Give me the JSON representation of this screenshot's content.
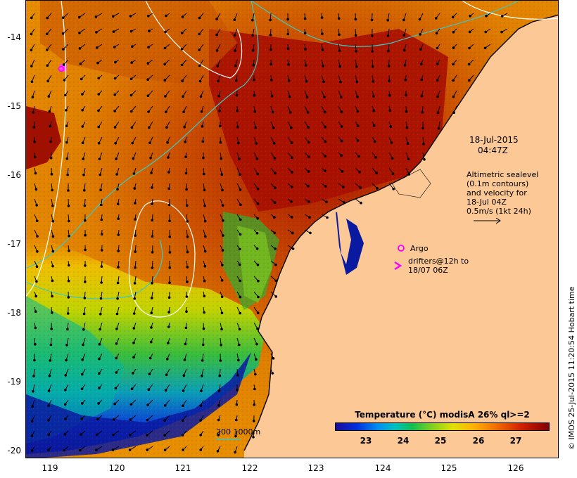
{
  "map": {
    "y_ticks": [
      "-14",
      "-15",
      "-16",
      "-17",
      "-18",
      "-19",
      "-20"
    ],
    "x_ticks": [
      "119",
      "120",
      "121",
      "122",
      "123",
      "124",
      "125",
      "126"
    ]
  },
  "annotations": {
    "date": "18-Jul-2015",
    "time": "04:47Z",
    "altimetry_lines": [
      "Altimetric sealevel",
      "(0.1m contours)",
      "and velocity for",
      "18-Jul 04Z",
      "0.5m/s (1kt 24h)"
    ],
    "argo_label": "Argo",
    "drifters_lines": [
      "drifters@12h to",
      "18/07 06Z"
    ],
    "depth_legend": "200  1000m"
  },
  "colorbar": {
    "title": "Temperature (°C) modisA 26% ql>=2",
    "ticks": [
      "23",
      "24",
      "25",
      "26",
      "27"
    ]
  },
  "credit": "© IMOS 25-Jul-2015 11:20:54 Hobart time",
  "colors": {
    "land": "#fbc896",
    "isobath": "#3cc8c8",
    "contour": "#ffffff",
    "argo": "#ff00ff"
  }
}
